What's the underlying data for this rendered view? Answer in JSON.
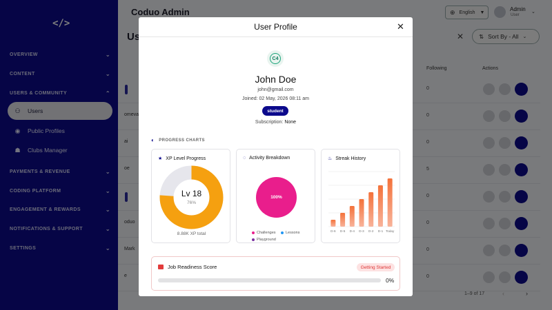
{
  "app": {
    "title": "Coduo Admin",
    "logo": "</>"
  },
  "header": {
    "language": "English",
    "user_name": "Admin",
    "user_role": "User"
  },
  "sidebar": {
    "sections": [
      {
        "label": "OVERVIEW",
        "expanded": false
      },
      {
        "label": "CONTENT",
        "expanded": false
      },
      {
        "label": "USERS & COMMUNITY",
        "expanded": true
      },
      {
        "label": "PAYMENTS & REVENUE",
        "expanded": false
      },
      {
        "label": "CODING PLATFORM",
        "expanded": false
      },
      {
        "label": "ENGAGEMENT & REWARDS",
        "expanded": false
      },
      {
        "label": "NOTIFICATIONS & SUPPORT",
        "expanded": false
      },
      {
        "label": "SETTINGS",
        "expanded": false
      }
    ],
    "items": [
      {
        "label": "Users",
        "icon": "users-icon",
        "active": true
      },
      {
        "label": "Public Profiles",
        "icon": "profile-icon",
        "active": false
      },
      {
        "label": "Clubs Manager",
        "icon": "clubs-icon",
        "active": false
      }
    ]
  },
  "background_page": {
    "title": "Us",
    "sort_label": "Sort By - All",
    "columns": {
      "following": "Following",
      "actions": "Actions"
    },
    "rows": [
      {
        "frag": "",
        "following": "0"
      },
      {
        "frag": "omeva",
        "following": "0"
      },
      {
        "frag": "ai",
        "following": "0"
      },
      {
        "frag": "oe",
        "following": "5"
      },
      {
        "frag": "",
        "following": "0"
      },
      {
        "frag": "oduo",
        "following": "0"
      },
      {
        "frag": "Mark",
        "following": "0"
      },
      {
        "frag": "e",
        "following": "0"
      }
    ],
    "pagination": "1–9 of 17"
  },
  "modal": {
    "title": "User Profile",
    "avatar_initials": "C4",
    "name": "John Doe",
    "email": "john@gmail.com",
    "joined": "Joined: 02 May, 2026 08:11 am",
    "role": "student",
    "subscription_label": "Subscription:",
    "subscription_value": "None",
    "progress_heading": "PROGRESS CHARTS",
    "xp_card": {
      "title": "XP Level Progress",
      "level": "Lv 18",
      "percent_label": "76%",
      "progress": 0.76,
      "total": "8.88K XP total",
      "fill_color": "#f5a010",
      "track_color": "#e6e6ec"
    },
    "activity_card": {
      "title": "Activity Breakdown",
      "center_label": "100%",
      "legend": [
        {
          "name": "Challenges",
          "color": "#e91e8c"
        },
        {
          "name": "Lessons",
          "color": "#2196f3"
        },
        {
          "name": "Playground",
          "color": "#7b2fa0"
        }
      ]
    },
    "streak_card": {
      "title": "Streak History"
    },
    "job_card": {
      "title": "Job Readiness Score",
      "badge": "Getting Started",
      "progress": 0,
      "percent_label": "0%"
    }
  },
  "chart_data": [
    {
      "type": "pie",
      "title": "Activity Breakdown",
      "categories": [
        "Challenges",
        "Lessons",
        "Playground"
      ],
      "values": [
        100,
        0,
        0
      ]
    },
    {
      "type": "bar",
      "title": "Streak History",
      "categories": [
        "D-6",
        "D-5",
        "D-4",
        "D-3",
        "D-2",
        "D-1",
        "Today"
      ],
      "values": [
        1,
        2,
        3,
        4,
        5,
        6,
        7
      ],
      "ylim": [
        0,
        8
      ],
      "grid": true
    }
  ]
}
